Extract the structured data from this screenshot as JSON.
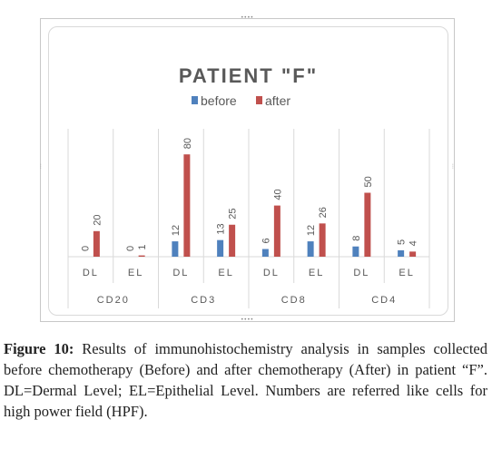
{
  "chart_data": {
    "type": "bar",
    "title": "PATIENT \"F\"",
    "legend_position": "top",
    "groups": [
      "CD20",
      "CD3",
      "CD8",
      "CD4"
    ],
    "subcategories": [
      "DL",
      "EL",
      "DL",
      "EL",
      "DL",
      "EL",
      "DL",
      "EL"
    ],
    "series": [
      {
        "name": "before",
        "color": "#4f81bd",
        "values": [
          0,
          0,
          12,
          13,
          6,
          12,
          8,
          5
        ]
      },
      {
        "name": "after",
        "color": "#c0504d",
        "values": [
          20,
          1,
          80,
          25,
          40,
          26,
          50,
          4
        ]
      }
    ],
    "ylim": [
      0,
      100
    ],
    "grid": false
  },
  "caption": {
    "label": "Figure 10:",
    "text": "Results of immunohistochemistry analysis in samples collected before chemotherapy (Before) and after chemotherapy (After) in patient “F”. DL=Dermal Level; EL=Epithelial Level. Numbers are referred like cells for high power field (HPF)."
  }
}
